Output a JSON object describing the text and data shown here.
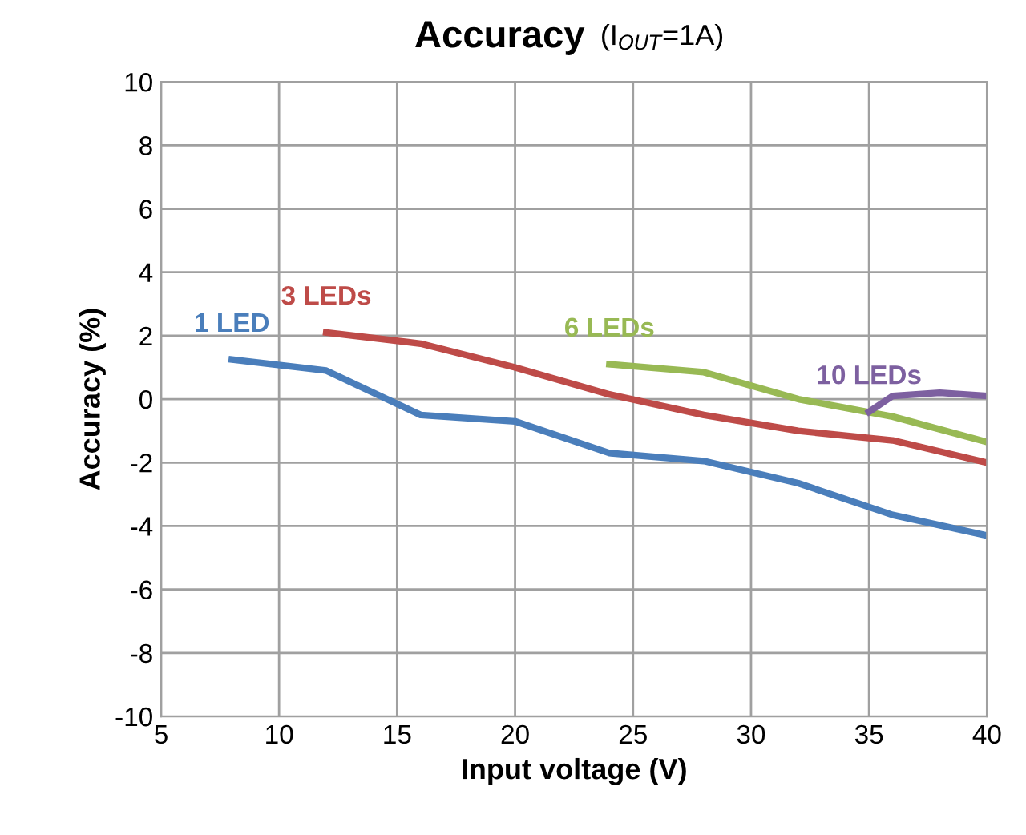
{
  "chart_data": {
    "type": "line",
    "title": "Accuracy",
    "subtitle": "(I$_{OUT}$=1A)",
    "xlabel": "Input voltage (V)",
    "ylabel": "Accuracy (%)",
    "xlim": [
      5,
      40
    ],
    "xticks": [
      5,
      10,
      15,
      20,
      25,
      30,
      35,
      40
    ],
    "ylim": [
      -10,
      10
    ],
    "yticks": [
      -10,
      -8,
      -6,
      -4,
      -2,
      0,
      2,
      4,
      6,
      8,
      10
    ],
    "grid": true,
    "marker": "none",
    "line_style": "solid",
    "series": [
      {
        "name": "1 LED",
        "color": "#4a7ebb",
        "x": [
          8,
          12,
          16,
          20,
          24,
          28,
          32,
          36,
          40
        ],
        "values": [
          1.25,
          0.9,
          -0.5,
          -0.7,
          -1.7,
          -1.95,
          -2.65,
          -3.65,
          -4.3
        ]
      },
      {
        "name": "3 LEDs",
        "color": "#be4b48",
        "x": [
          12,
          16,
          20,
          24,
          28,
          32,
          36,
          40
        ],
        "values": [
          2.1,
          1.75,
          1.0,
          0.15,
          -0.5,
          -1.0,
          -1.3,
          -2.0
        ]
      },
      {
        "name": "6 LEDs",
        "color": "#98b954",
        "x": [
          24,
          28,
          32,
          36,
          40
        ],
        "values": [
          1.1,
          0.85,
          0.0,
          -0.55,
          -1.35
        ]
      },
      {
        "name": "10 LEDs",
        "color": "#7d60a0",
        "x": [
          35,
          36,
          38,
          40
        ],
        "values": [
          -0.4,
          0.1,
          0.2,
          0.1
        ]
      }
    ]
  }
}
